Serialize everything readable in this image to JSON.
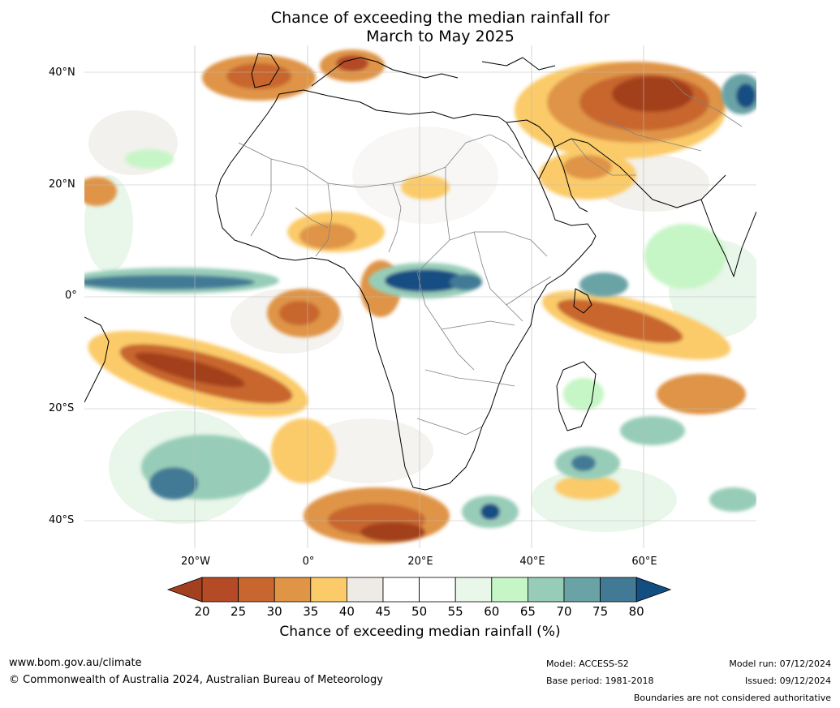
{
  "title_line1": "Chance of exceeding the median rainfall for",
  "title_line2": "March to May 2025",
  "lat_labels": [
    "40°N",
    "20°N",
    "0°",
    "20°S",
    "40°S"
  ],
  "lon_labels": [
    "20°W",
    "0°",
    "20°E",
    "40°E",
    "60°E"
  ],
  "colorbar": {
    "label": "Chance of exceeding median rainfall (%)",
    "ticks": [
      "20",
      "25",
      "30",
      "35",
      "40",
      "45",
      "50",
      "55",
      "60",
      "65",
      "70",
      "75",
      "80"
    ],
    "colors": [
      "#a3401f",
      "#b44a26",
      "#c8662f",
      "#df9446",
      "#fbcb6a",
      "#eeebe6",
      "#ffffff",
      "#ffffff",
      "#e9f6ea",
      "#c6f5c6",
      "#97cdb8",
      "#6aa3a6",
      "#427a96",
      "#134e83"
    ]
  },
  "footer": {
    "website": "www.bom.gov.au/climate",
    "copyright": "© Commonwealth of Australia 2024, Australian Bureau of Meteorology",
    "model": "Model: ACCESS-S2",
    "base_period": "Base period: 1981-2018",
    "model_run": "Model run: 07/12/2024",
    "issued": "Issued: 09/12/2024",
    "disclaimer": "Boundaries are not considered authoritative"
  }
}
